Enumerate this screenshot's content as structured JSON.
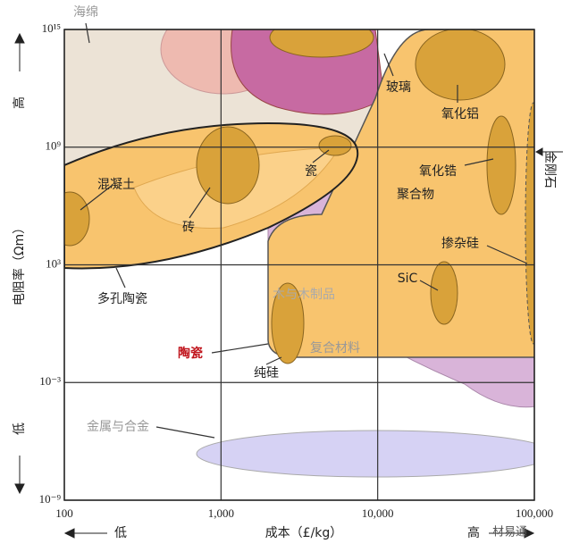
{
  "chart_data": {
    "type": "ashby",
    "y_label": "电阻率（Ωm）",
    "y_high": "高",
    "y_low": "低",
    "x_label": "成本（£/kg）",
    "x_low": "低",
    "x_high": "高",
    "log_x": true,
    "log_y": true,
    "grid": true,
    "xlim": [
      100,
      100000
    ],
    "xticks": [
      100,
      {
        "value": 1000,
        "label": "1,000"
      },
      {
        "value": 10000,
        "label": "10,000"
      },
      {
        "value": 100000,
        "label": "100,000"
      }
    ],
    "ylim": [
      1e-09,
      1000000000000000.0
    ],
    "yticks": [
      {
        "value": 1e-09,
        "label": "10⁻⁹"
      },
      {
        "value": 0.001,
        "label": "10⁻³"
      },
      {
        "value": 1000,
        "label": "10³"
      },
      {
        "value": 1000000000,
        "label": "10⁹"
      },
      {
        "value": 1000000000000000.0,
        "label": "10¹⁵"
      }
    ],
    "annotations": [
      "海绵",
      "玻璃",
      "氧化铝",
      "氧化锆",
      "聚合物",
      "金刚石",
      "混凝土",
      "瓷",
      "砖",
      "掺杂硅",
      "SiC",
      "多孔陶瓷",
      "木与木制品",
      "复合材料",
      "陶瓷",
      "纯硅",
      "金属与合金"
    ],
    "watermark": "材易通"
  }
}
